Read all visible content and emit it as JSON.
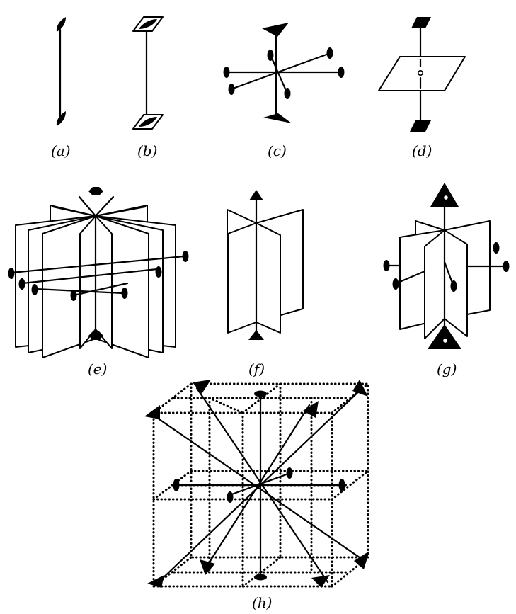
{
  "labels": {
    "a": "(a)",
    "b": "(b)",
    "c": "(c)",
    "d": "(d)",
    "e": "(e)",
    "f": "(f)",
    "g": "(g)",
    "h": "(h)"
  }
}
